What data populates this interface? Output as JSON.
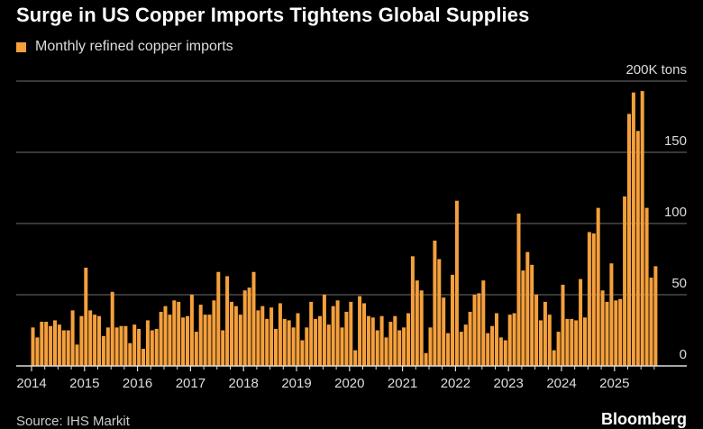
{
  "chart_data": {
    "type": "bar",
    "title": "Surge in US Copper Imports Tightens Global Supplies",
    "legend": [
      "Monthly refined copper imports"
    ],
    "legend_placement": "top-left",
    "ylabel": "200K tons",
    "ylim": [
      0,
      200
    ],
    "yticks": [
      0,
      50,
      100,
      150,
      200
    ],
    "ytick_labels": [
      "0",
      "50",
      "100",
      "150",
      "200K tons"
    ],
    "xtick_labels": [
      "2014",
      "2015",
      "2016",
      "2017",
      "2018",
      "2019",
      "2020",
      "2021",
      "2022",
      "2023",
      "2024",
      "2025"
    ],
    "start": "2014-01",
    "frequency": "monthly",
    "values": [
      27,
      20,
      31,
      31,
      28,
      32,
      29,
      25,
      25,
      39,
      15,
      35,
      69,
      39,
      36,
      35,
      21,
      27,
      52,
      27,
      28,
      28,
      16,
      29,
      26,
      12,
      32,
      25,
      26,
      38,
      42,
      36,
      46,
      45,
      34,
      35,
      50,
      24,
      43,
      36,
      36,
      46,
      66,
      25,
      63,
      45,
      42,
      36,
      53,
      55,
      66,
      39,
      42,
      33,
      41,
      26,
      44,
      33,
      32,
      27,
      37,
      18,
      27,
      45,
      33,
      35,
      50,
      29,
      42,
      46,
      27,
      38,
      45,
      11,
      49,
      44,
      35,
      34,
      25,
      35,
      20,
      31,
      35,
      25,
      27,
      37,
      77,
      60,
      53,
      9,
      27,
      88,
      75,
      48,
      23,
      64,
      116,
      24,
      29,
      38,
      50,
      51,
      60,
      23,
      28,
      37,
      20,
      18,
      36,
      37,
      107,
      67,
      80,
      71,
      50,
      32,
      45,
      36,
      11,
      24,
      57,
      33,
      33,
      32,
      61,
      34,
      94,
      93,
      111,
      53,
      45,
      72,
      46,
      47,
      119,
      177,
      192,
      165,
      193,
      111,
      62,
      70
    ],
    "grid": true,
    "color": "#f5a03c"
  },
  "footer": {
    "source": "Source: IHS Markit",
    "brand": "Bloomberg"
  }
}
